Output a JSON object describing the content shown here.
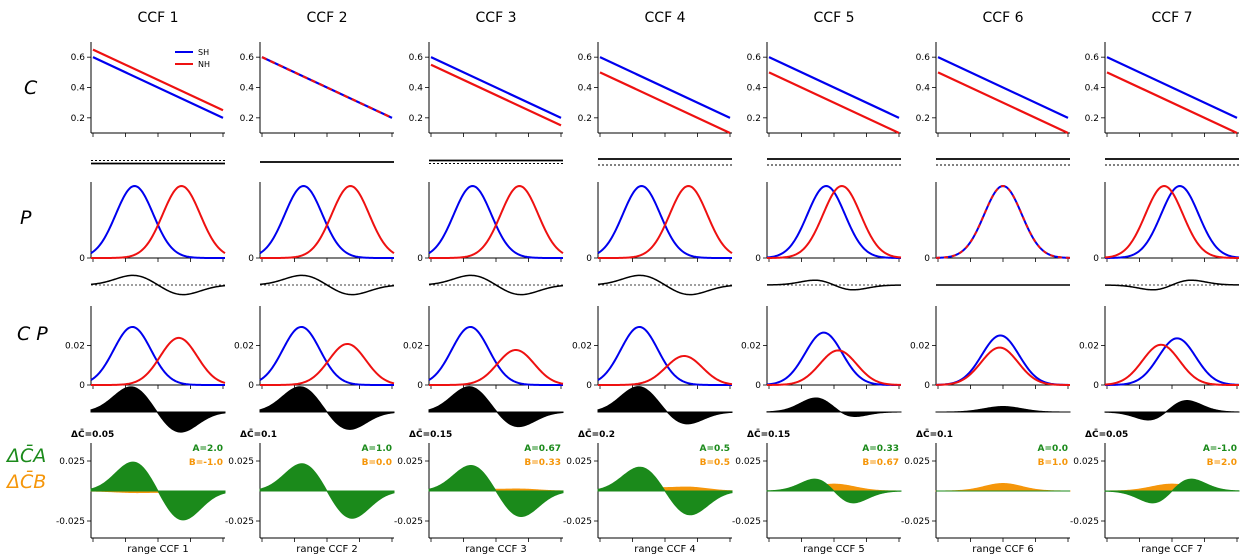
{
  "colors": {
    "sh": "#0000ee",
    "nh": "#ee1111",
    "green": "#1b8a1b",
    "orange": "#f5960a",
    "black": "#000000"
  },
  "row_labels": {
    "c": "C",
    "p": "P",
    "cp": "C P",
    "delta_a": "ΔC̄A",
    "delta_b": "ΔC̄B"
  },
  "legend": {
    "sh": "SH",
    "nh": "NH"
  },
  "chart_data": {
    "type": "line",
    "panels": [
      {
        "title": "CCF 1",
        "xlabel": "range CCF 1",
        "dc_label": "ΔC̄=0.05",
        "a_label": "A=2.0",
        "b_label": "B=-1.0",
        "c_sh": [
          0.6,
          0.2
        ],
        "c_nh": [
          0.65,
          0.25
        ],
        "p_sh_mu": -0.35,
        "p_nh_mu": 0.35,
        "p_sigma": 0.28
      },
      {
        "title": "CCF 2",
        "xlabel": "range CCF 2",
        "dc_label": "ΔC̄=0.1",
        "a_label": "A=1.0",
        "b_label": "B=0.0",
        "c_sh": [
          0.6,
          0.2
        ],
        "c_nh": [
          0.6,
          0.2
        ],
        "p_sh_mu": -0.35,
        "p_nh_mu": 0.35,
        "p_sigma": 0.28
      },
      {
        "title": "CCF 3",
        "xlabel": "range CCF 3",
        "dc_label": "ΔC̄=0.15",
        "a_label": "A=0.67",
        "b_label": "B=0.33",
        "c_sh": [
          0.6,
          0.2
        ],
        "c_nh": [
          0.55,
          0.15
        ],
        "p_sh_mu": -0.35,
        "p_nh_mu": 0.35,
        "p_sigma": 0.28
      },
      {
        "title": "CCF 4",
        "xlabel": "range CCF 4",
        "dc_label": "ΔC̄=0.2",
        "a_label": "A=0.5",
        "b_label": "B=0.5",
        "c_sh": [
          0.6,
          0.2
        ],
        "c_nh": [
          0.5,
          0.1
        ],
        "p_sh_mu": -0.35,
        "p_nh_mu": 0.35,
        "p_sigma": 0.28
      },
      {
        "title": "CCF 5",
        "xlabel": "range CCF 5",
        "dc_label": "ΔC̄=0.15",
        "a_label": "A=0.33",
        "b_label": "B=0.67",
        "c_sh": [
          0.6,
          0.2
        ],
        "c_nh": [
          0.5,
          0.1
        ],
        "p_sh_mu": -0.117,
        "p_nh_mu": 0.117,
        "p_sigma": 0.28
      },
      {
        "title": "CCF 6",
        "xlabel": "range CCF 6",
        "dc_label": "ΔC̄=0.1",
        "a_label": "A=0.0",
        "b_label": "B=1.0",
        "c_sh": [
          0.6,
          0.2
        ],
        "c_nh": [
          0.5,
          0.1
        ],
        "p_sh_mu": 0.0,
        "p_nh_mu": 0.0,
        "p_sigma": 0.28
      },
      {
        "title": "CCF 7",
        "xlabel": "range CCF 7",
        "dc_label": "ΔC̄=0.05",
        "a_label": "A=-1.0",
        "b_label": "B=2.0",
        "c_sh": [
          0.6,
          0.2
        ],
        "c_nh": [
          0.5,
          0.1
        ],
        "p_sh_mu": 0.117,
        "p_nh_mu": -0.117,
        "p_sigma": 0.28
      }
    ],
    "c_ylim": [
      0.1,
      0.7
    ],
    "c_yticks": [
      0.2,
      0.4,
      0.6
    ],
    "c_yticklabels": [
      "0.2",
      "0.4",
      "0.6"
    ],
    "p_ytick_label": "0",
    "cp_ytick_labels": [
      "0",
      "0.02"
    ],
    "cp_yticks": [
      0,
      0.02
    ],
    "cp_ylim": [
      0,
      0.04
    ],
    "delta_ytick_labels": [
      "0.025",
      "-0.025"
    ],
    "delta_yticks": [
      0.025,
      -0.025
    ],
    "delta_ylim": [
      -0.04,
      0.04
    ]
  }
}
